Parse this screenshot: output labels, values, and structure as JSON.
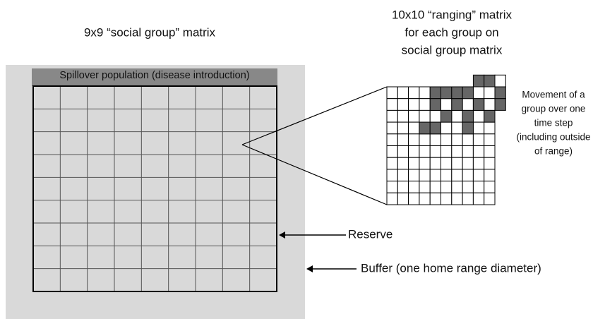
{
  "left_title": "9x9 “social group” matrix",
  "right_title": [
    "10x10 “ranging” matrix",
    "for each group on",
    "social group matrix"
  ],
  "spillover_label": "Spillover population (disease introduction)",
  "movement_note": [
    "Movement of a",
    "group over one",
    "time step",
    "(including outside",
    "of range)"
  ],
  "reserve_label": "Reserve",
  "buffer_label": "Buffer (one home range diameter)"
}
